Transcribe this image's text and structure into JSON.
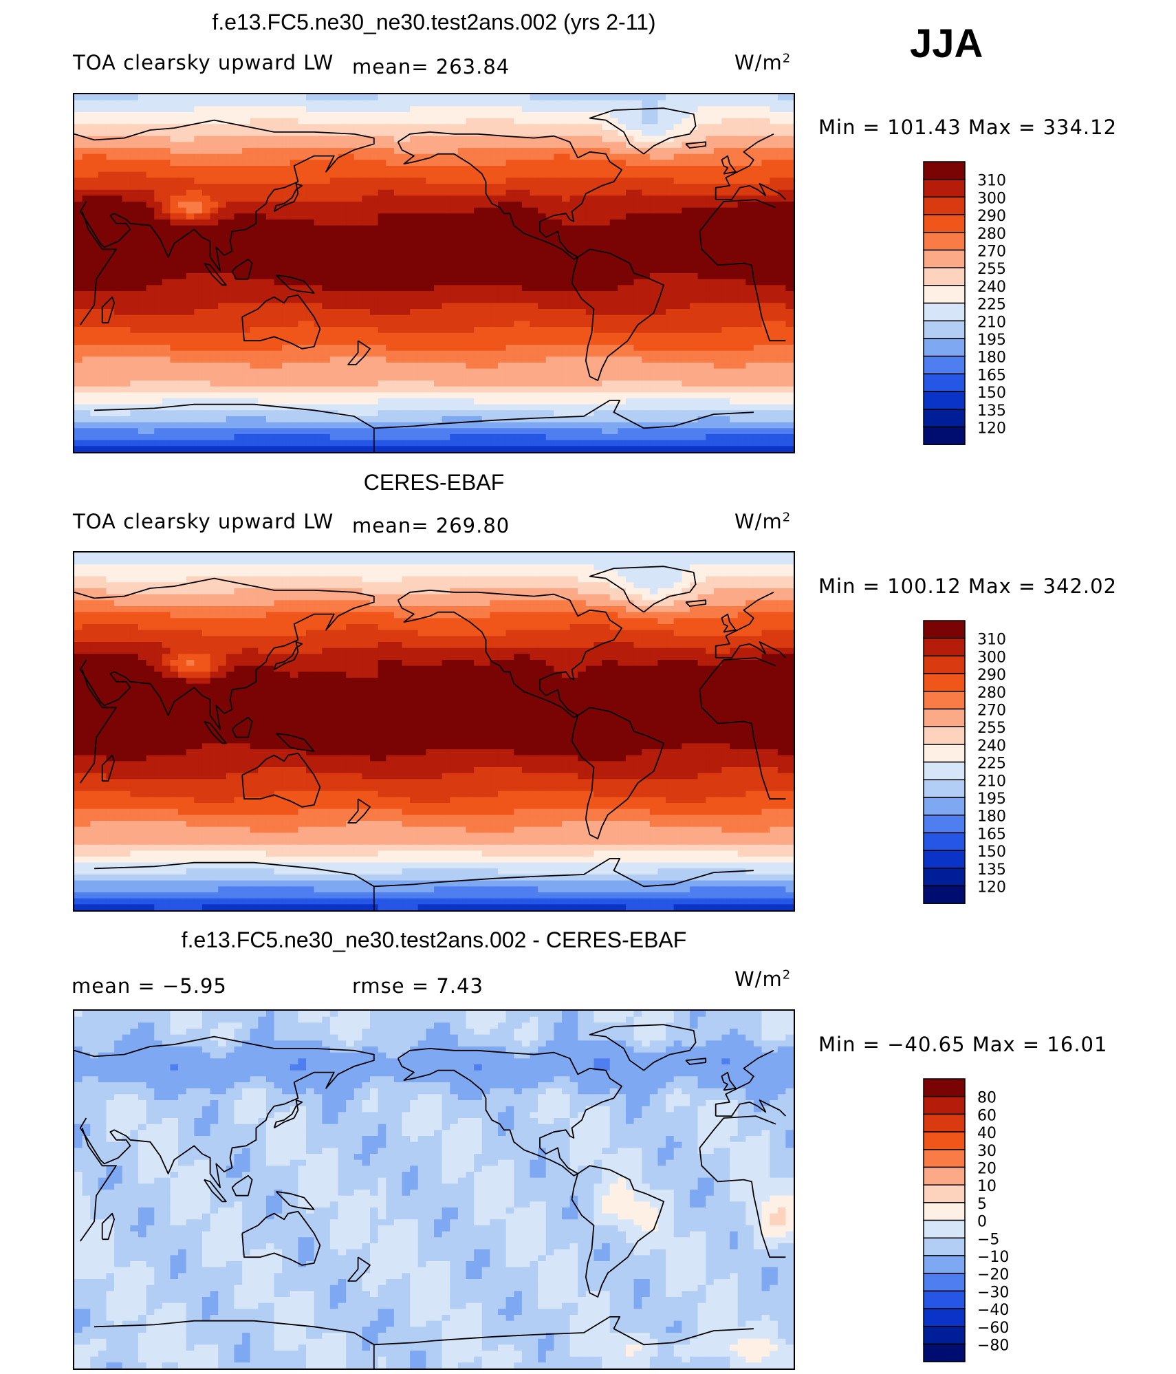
{
  "season": "JJA",
  "panels": [
    {
      "title": "f.e13.FC5.ne30_ne30.test2ans.002 (yrs 2-11)",
      "left_label": "TOA clearsky upward LW",
      "center_label": "mean= 263.84",
      "units": "W/m",
      "units_sup": "2",
      "minmax": "Min  =  101.43  Max  =  334.12",
      "levels": [
        "310",
        "300",
        "290",
        "280",
        "270",
        "255",
        "240",
        "225",
        "210",
        "195",
        "180",
        "165",
        "150",
        "135",
        "120"
      ],
      "colors": [
        "#7a0403",
        "#b51d0a",
        "#d93a0f",
        "#f0561a",
        "#f97b45",
        "#fca987",
        "#fdd3bd",
        "#fef0e4",
        "#d6e6f8",
        "#b3cef5",
        "#7fa8f2",
        "#4f7ef1",
        "#2556e6",
        "#0a34c8",
        "#001e98",
        "#000d70"
      ],
      "field": "model"
    },
    {
      "title": "CERES-EBAF",
      "left_label": "TOA clearsky upward LW",
      "center_label": "mean= 269.80",
      "units": "W/m",
      "units_sup": "2",
      "minmax": "Min  =  100.12  Max  =  342.02",
      "levels": [
        "310",
        "300",
        "290",
        "280",
        "270",
        "255",
        "240",
        "225",
        "210",
        "195",
        "180",
        "165",
        "150",
        "135",
        "120"
      ],
      "colors": [
        "#7a0403",
        "#b51d0a",
        "#d93a0f",
        "#f0561a",
        "#f97b45",
        "#fca987",
        "#fdd3bd",
        "#fef0e4",
        "#d6e6f8",
        "#b3cef5",
        "#7fa8f2",
        "#4f7ef1",
        "#2556e6",
        "#0a34c8",
        "#001e98",
        "#000d70"
      ],
      "field": "obs"
    },
    {
      "title": "f.e13.FC5.ne30_ne30.test2ans.002 - CERES-EBAF",
      "left_label": "mean =    −5.95",
      "center_label": "rmse =     7.43",
      "units": "W/m",
      "units_sup": "2",
      "minmax": "Min  =  −40.65  Max  =    16.01",
      "levels": [
        "80",
        "60",
        "40",
        "30",
        "20",
        "10",
        "5",
        "0",
        "−5",
        "−10",
        "−20",
        "−30",
        "−40",
        "−60",
        "−80"
      ],
      "colors": [
        "#7a0403",
        "#b51d0a",
        "#d93a0f",
        "#f0561a",
        "#f97b45",
        "#fca987",
        "#fdd3bd",
        "#fef0e4",
        "#d6e6f8",
        "#b3cef5",
        "#7fa8f2",
        "#4f7ef1",
        "#2556e6",
        "#0a34c8",
        "#001e98",
        "#000d70"
      ],
      "field": "diff"
    }
  ],
  "chart_data": [
    {
      "type": "heatmap",
      "title": "f.e13.FC5.ne30_ne30.test2ans.002 (yrs 2-11)",
      "variable": "TOA clearsky upward LW",
      "units": "W/m2",
      "mean": 263.84,
      "min": 101.43,
      "max": 334.12,
      "contour_levels": [
        120,
        135,
        150,
        165,
        180,
        195,
        210,
        225,
        240,
        255,
        270,
        280,
        290,
        300,
        310
      ]
    },
    {
      "type": "heatmap",
      "title": "CERES-EBAF",
      "variable": "TOA clearsky upward LW",
      "units": "W/m2",
      "mean": 269.8,
      "min": 100.12,
      "max": 342.02,
      "contour_levels": [
        120,
        135,
        150,
        165,
        180,
        195,
        210,
        225,
        240,
        255,
        270,
        280,
        290,
        300,
        310
      ]
    },
    {
      "type": "heatmap",
      "title": "f.e13.FC5.ne30_ne30.test2ans.002 - CERES-EBAF",
      "units": "W/m2",
      "mean": -5.95,
      "rmse": 7.43,
      "min": -40.65,
      "max": 16.01,
      "contour_levels": [
        -80,
        -60,
        -40,
        -30,
        -20,
        -10,
        -5,
        0,
        5,
        10,
        20,
        30,
        40,
        60,
        80
      ]
    }
  ]
}
